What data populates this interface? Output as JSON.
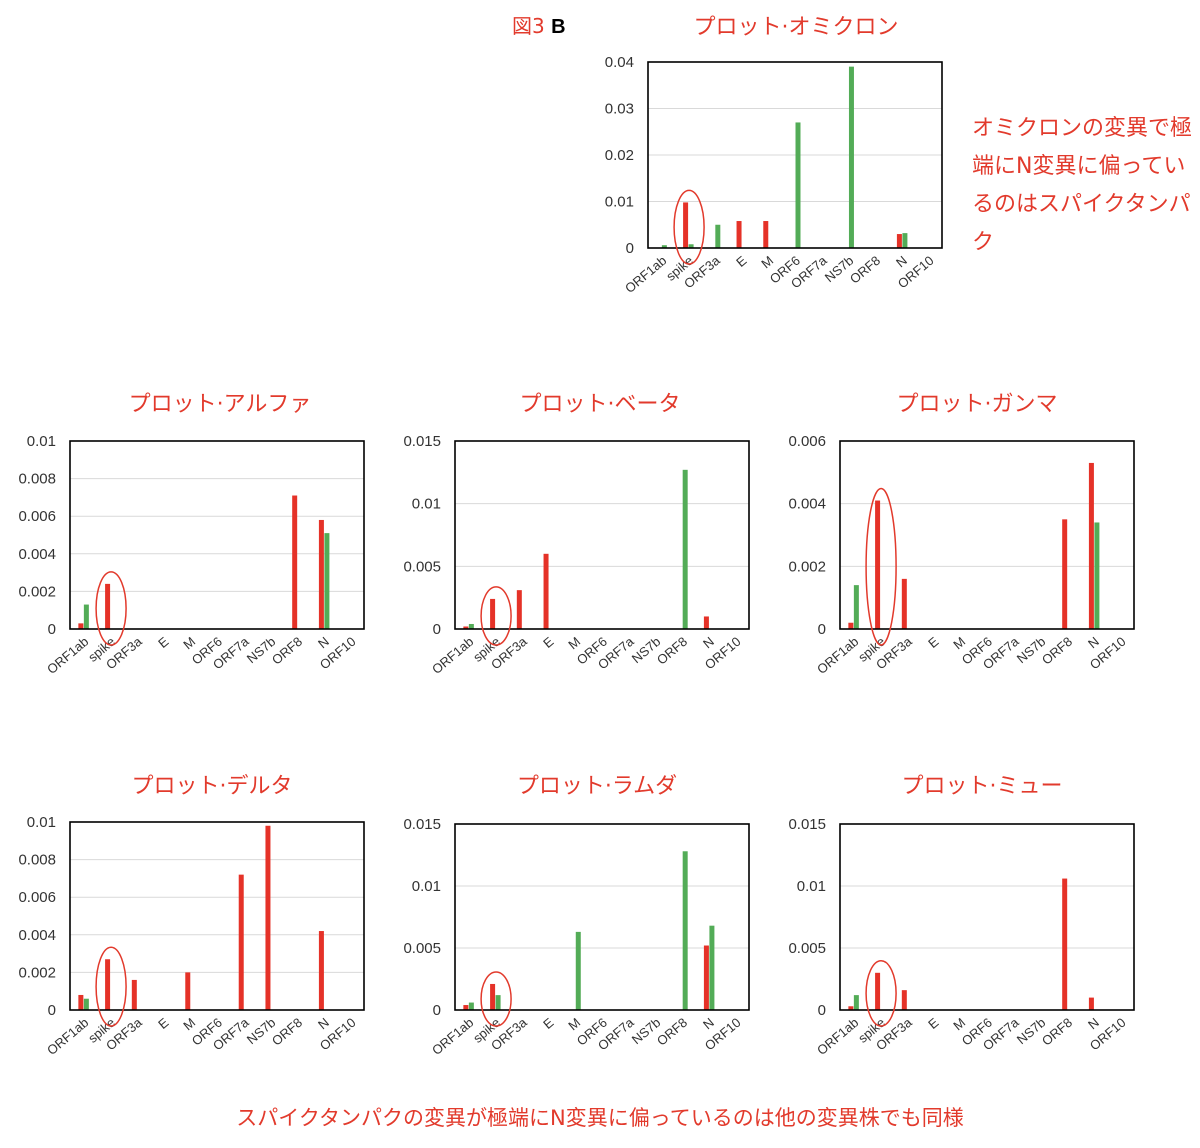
{
  "figure_label": {
    "prefix": "図3",
    "letter": "B"
  },
  "side_note": "オミクロンの変異で極端にN変異に偏っているのはスパイクタンパク",
  "footer_note": "スパイクタンパクの変異が極端にN変異に偏っているのは他の変異株でも同様",
  "colors": {
    "red": "#e53228",
    "green": "#53ac57",
    "annotation": "#e23a2c"
  },
  "chart_data": [
    {
      "id": "omicron",
      "type": "bar",
      "title": "プロット·オミクロン",
      "categories": [
        "ORF1ab",
        "spike",
        "ORF3a",
        "E",
        "M",
        "ORF6",
        "ORF7a",
        "NS7b",
        "ORF8",
        "N",
        "ORF10"
      ],
      "ylim": [
        0,
        0.04
      ],
      "yticks": [
        "0",
        "0.01",
        "0.02",
        "0.03",
        "0.04"
      ],
      "grid": true,
      "series": [
        {
          "color": "red",
          "values": [
            0,
            0.0098,
            0,
            0.0058,
            0.0058,
            0,
            0,
            0,
            0,
            0.003,
            0
          ]
        },
        {
          "color": "green",
          "values": [
            0.0006,
            0.0008,
            0.005,
            0,
            0,
            0.027,
            0,
            0.039,
            0,
            0.0032,
            0
          ]
        }
      ],
      "highlight": "spike"
    },
    {
      "id": "alpha",
      "type": "bar",
      "title": "プロット·アルファ",
      "categories": [
        "ORF1ab",
        "spike",
        "ORF3a",
        "E",
        "M",
        "ORF6",
        "ORF7a",
        "NS7b",
        "ORF8",
        "N",
        "ORF10"
      ],
      "ylim": [
        0,
        0.01
      ],
      "yticks": [
        "0",
        "0.002",
        "0.004",
        "0.006",
        "0.008",
        "0.01"
      ],
      "grid": true,
      "series": [
        {
          "color": "red",
          "values": [
            0.0003,
            0.0024,
            0,
            0,
            0,
            0,
            0,
            0,
            0.0071,
            0.0058,
            0
          ]
        },
        {
          "color": "green",
          "values": [
            0.0013,
            0,
            0,
            0,
            0,
            0,
            0,
            0,
            0,
            0.0051,
            0
          ]
        }
      ],
      "highlight": "spike"
    },
    {
      "id": "beta",
      "type": "bar",
      "title": "プロット·ベータ",
      "categories": [
        "ORF1ab",
        "spike",
        "ORF3a",
        "E",
        "M",
        "ORF6",
        "ORF7a",
        "NS7b",
        "ORF8",
        "N",
        "ORF10"
      ],
      "ylim": [
        0,
        0.015
      ],
      "yticks": [
        "0",
        "0.005",
        "0.01",
        "0.015"
      ],
      "grid": true,
      "series": [
        {
          "color": "red",
          "values": [
            0.0002,
            0.0024,
            0.0031,
            0.006,
            0,
            0,
            0,
            0,
            0,
            0.001,
            0
          ]
        },
        {
          "color": "green",
          "values": [
            0.0004,
            0,
            0,
            0,
            0,
            0,
            0,
            0,
            0.0127,
            0,
            0
          ]
        }
      ],
      "highlight": "spike"
    },
    {
      "id": "gamma",
      "type": "bar",
      "title": "プロット·ガンマ",
      "categories": [
        "ORF1ab",
        "spike",
        "ORF3a",
        "E",
        "M",
        "ORF6",
        "ORF7a",
        "NS7b",
        "ORF8",
        "N",
        "ORF10"
      ],
      "ylim": [
        0,
        0.006
      ],
      "yticks": [
        "0",
        "0.002",
        "0.004",
        "0.006"
      ],
      "grid": true,
      "series": [
        {
          "color": "red",
          "values": [
            0.0002,
            0.0041,
            0.0016,
            0,
            0,
            0,
            0,
            0,
            0.0035,
            0.0053,
            0
          ]
        },
        {
          "color": "green",
          "values": [
            0.0014,
            0,
            0,
            0,
            0,
            0,
            0,
            0,
            0,
            0.0034,
            0
          ]
        }
      ],
      "highlight": "spike"
    },
    {
      "id": "delta",
      "type": "bar",
      "title": "プロット·デルタ",
      "categories": [
        "ORF1ab",
        "spike",
        "ORF3a",
        "E",
        "M",
        "ORF6",
        "ORF7a",
        "NS7b",
        "ORF8",
        "N",
        "ORF10"
      ],
      "ylim": [
        0,
        0.01
      ],
      "yticks": [
        "0",
        "0.002",
        "0.004",
        "0.006",
        "0.008",
        "0.01"
      ],
      "grid": true,
      "series": [
        {
          "color": "red",
          "values": [
            0.0008,
            0.0027,
            0.0016,
            0,
            0.002,
            0,
            0.0072,
            0.0098,
            0,
            0.0042,
            0
          ]
        },
        {
          "color": "green",
          "values": [
            0.0006,
            0,
            0,
            0,
            0,
            0,
            0,
            0,
            0,
            0,
            0
          ]
        }
      ],
      "highlight": "spike"
    },
    {
      "id": "lambda",
      "type": "bar",
      "title": "プロット·ラムダ",
      "categories": [
        "ORF1ab",
        "spike",
        "ORF3a",
        "E",
        "M",
        "ORF6",
        "ORF7a",
        "NS7b",
        "ORF8",
        "N",
        "ORF10"
      ],
      "ylim": [
        0,
        0.015
      ],
      "yticks": [
        "0",
        "0.005",
        "0.01",
        "0.015"
      ],
      "grid": true,
      "series": [
        {
          "color": "red",
          "values": [
            0.0004,
            0.0021,
            0,
            0,
            0,
            0,
            0,
            0,
            0,
            0.0052,
            0
          ]
        },
        {
          "color": "green",
          "values": [
            0.0006,
            0.0012,
            0,
            0,
            0.0063,
            0,
            0,
            0,
            0.0128,
            0.0068,
            0
          ]
        }
      ],
      "highlight": "spike"
    },
    {
      "id": "mu",
      "type": "bar",
      "title": "プロット·ミュー",
      "categories": [
        "ORF1ab",
        "spike",
        "ORF3a",
        "E",
        "M",
        "ORF6",
        "ORF7a",
        "NS7b",
        "ORF8",
        "N",
        "ORF10"
      ],
      "ylim": [
        0,
        0.015
      ],
      "yticks": [
        "0",
        "0.005",
        "0.01",
        "0.015"
      ],
      "grid": true,
      "series": [
        {
          "color": "red",
          "values": [
            0.0003,
            0.003,
            0.0016,
            0,
            0,
            0,
            0,
            0,
            0.0106,
            0.001,
            0
          ]
        },
        {
          "color": "green",
          "values": [
            0.0012,
            0,
            0,
            0,
            0,
            0,
            0,
            0,
            0,
            0,
            0
          ]
        }
      ],
      "highlight": "spike"
    }
  ]
}
